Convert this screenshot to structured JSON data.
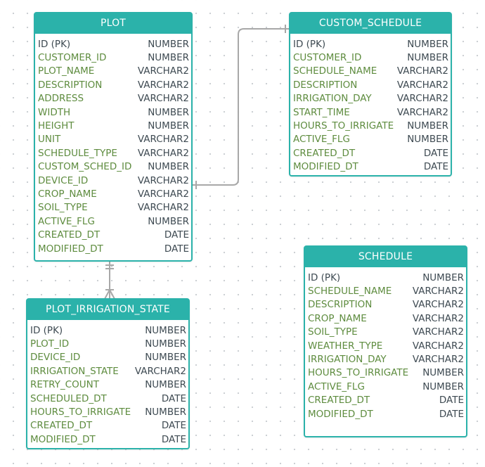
{
  "tables": {
    "plot": {
      "name": "PLOT",
      "columns": [
        {
          "name": "ID (PK)",
          "type": "NUMBER",
          "pk": true
        },
        {
          "name": "CUSTOMER_ID",
          "type": "NUMBER"
        },
        {
          "name": "PLOT_NAME",
          "type": "VARCHAR2"
        },
        {
          "name": "DESCRIPTION",
          "type": "VARCHAR2"
        },
        {
          "name": "ADDRESS",
          "type": "VARCHAR2"
        },
        {
          "name": "WIDTH",
          "type": "NUMBER"
        },
        {
          "name": "HEIGHT",
          "type": "NUMBER"
        },
        {
          "name": "UNIT",
          "type": "VARCHAR2"
        },
        {
          "name": "SCHEDULE_TYPE",
          "type": "VARCHAR2"
        },
        {
          "name": "CUSTOM_SCHED_ID",
          "type": "NUMBER"
        },
        {
          "name": "DEVICE_ID",
          "type": "VARCHAR2"
        },
        {
          "name": "CROP_NAME",
          "type": "VARCHAR2"
        },
        {
          "name": "SOIL_TYPE",
          "type": "VARCHAR2"
        },
        {
          "name": "ACTIVE_FLG",
          "type": "NUMBER"
        },
        {
          "name": "CREATED_DT",
          "type": "DATE"
        },
        {
          "name": "MODIFIED_DT",
          "type": "DATE"
        }
      ]
    },
    "custom_schedule": {
      "name": "CUSTOM_SCHEDULE",
      "columns": [
        {
          "name": "ID (PK)",
          "type": "NUMBER",
          "pk": true
        },
        {
          "name": "CUSTOMER_ID",
          "type": "NUMBER"
        },
        {
          "name": "SCHEDULE_NAME",
          "type": "VARCHAR2"
        },
        {
          "name": "DESCRIPTION",
          "type": "VARCHAR2"
        },
        {
          "name": "IRRIGATION_DAY",
          "type": "VARCHAR2"
        },
        {
          "name": "START_TIME",
          "type": "VARCHAR2"
        },
        {
          "name": "HOURS_TO_IRRIGATE",
          "type": "NUMBER"
        },
        {
          "name": "ACTIVE_FLG",
          "type": "NUMBER"
        },
        {
          "name": "CREATED_DT",
          "type": "DATE"
        },
        {
          "name": "MODIFIED_DT",
          "type": "DATE"
        }
      ]
    },
    "plot_irrigation_state": {
      "name": "PLOT_IRRIGATION_STATE",
      "columns": [
        {
          "name": "ID (PK)",
          "type": "NUMBER",
          "pk": true
        },
        {
          "name": "PLOT_ID",
          "type": "NUMBER"
        },
        {
          "name": "DEVICE_ID",
          "type": "NUMBER"
        },
        {
          "name": "IRRIGATION_STATE",
          "type": "VARCHAR2"
        },
        {
          "name": "RETRY_COUNT",
          "type": "NUMBER"
        },
        {
          "name": "SCHEDULED_DT",
          "type": "DATE"
        },
        {
          "name": "HOURS_TO_IRRIGATE",
          "type": "NUMBER"
        },
        {
          "name": "CREATED_DT",
          "type": "DATE"
        },
        {
          "name": "MODIFIED_DT",
          "type": "DATE"
        }
      ]
    },
    "schedule": {
      "name": "SCHEDULE",
      "columns": [
        {
          "name": "ID (PK)",
          "type": "NUMBER",
          "pk": true
        },
        {
          "name": "SCHEDULE_NAME",
          "type": "VARCHAR2"
        },
        {
          "name": "DESCRIPTION",
          "type": "VARCHAR2"
        },
        {
          "name": "CROP_NAME",
          "type": "VARCHAR2"
        },
        {
          "name": "SOIL_TYPE",
          "type": "VARCHAR2"
        },
        {
          "name": "WEATHER_TYPE",
          "type": "VARCHAR2"
        },
        {
          "name": "IRRIGATION_DAY",
          "type": "VARCHAR2"
        },
        {
          "name": "HOURS_TO_IRRIGATE",
          "type": "NUMBER"
        },
        {
          "name": "ACTIVE_FLG",
          "type": "NUMBER"
        },
        {
          "name": "CREATED_DT",
          "type": "DATE"
        },
        {
          "name": "MODIFIED_DT",
          "type": "DATE"
        }
      ]
    }
  },
  "relationships": [
    {
      "from": "PLOT",
      "from_end": "one",
      "to": "CUSTOM_SCHEDULE",
      "to_end": "one"
    },
    {
      "from": "PLOT",
      "from_end": "one-and-only-one",
      "to": "PLOT_IRRIGATION_STATE",
      "to_end": "one-or-many"
    }
  ],
  "colors": {
    "header": "#2bb2aa",
    "border": "#2bb2aa",
    "column_name": "#5e8c3f",
    "column_type": "#3e4a52",
    "connector": "#a8a8a8"
  }
}
